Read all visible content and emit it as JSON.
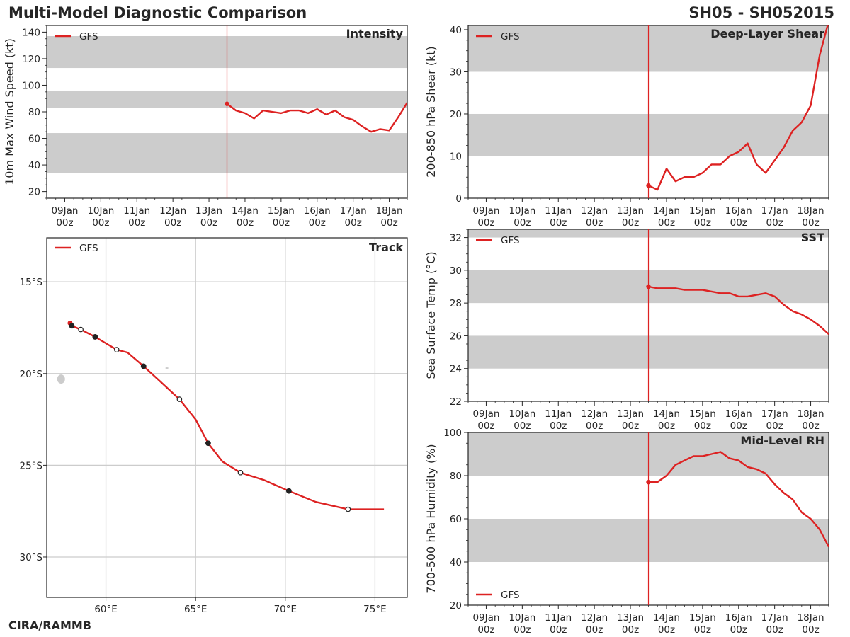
{
  "figure": {
    "title": "Multi-Model Diagnostic Comparison",
    "storm_id": "SH05 - SH052015",
    "credit": "CIRA/RAMMB"
  },
  "colors": {
    "model_line": "#dd2222",
    "band": "#cccccc",
    "grid": "#cccccc",
    "axis": "#262626",
    "marker_edge": "#222222"
  },
  "time_axis": {
    "ticks": [
      {
        "day": "09Jan",
        "hour": "00z"
      },
      {
        "day": "10Jan",
        "hour": "00z"
      },
      {
        "day": "11Jan",
        "hour": "00z"
      },
      {
        "day": "12Jan",
        "hour": "00z"
      },
      {
        "day": "13Jan",
        "hour": "00z"
      },
      {
        "day": "14Jan",
        "hour": "00z"
      },
      {
        "day": "15Jan",
        "hour": "00z"
      },
      {
        "day": "16Jan",
        "hour": "00z"
      },
      {
        "day": "17Jan",
        "hour": "00z"
      },
      {
        "day": "18Jan",
        "hour": "00z"
      }
    ],
    "range_days": [
      -0.5,
      9.5
    ],
    "init_time_day": 4.5
  },
  "chart_data": [
    {
      "id": "intensity",
      "type": "line",
      "title": "Intensity",
      "ylabel": "10m Max Wind Speed (kt)",
      "ylim": [
        15,
        145
      ],
      "yticks": [
        20,
        40,
        60,
        80,
        100,
        120,
        140
      ],
      "bands": [
        [
          34,
          64
        ],
        [
          83,
          96
        ],
        [
          113,
          137
        ]
      ],
      "legend": "GFS",
      "legend_position": "top-left",
      "series": [
        {
          "name": "GFS",
          "x": [
            4.5,
            4.75,
            5.0,
            5.25,
            5.5,
            5.75,
            6.0,
            6.25,
            6.5,
            6.75,
            7.0,
            7.25,
            7.5,
            7.75,
            8.0,
            8.25,
            8.5,
            8.75,
            9.0,
            9.25,
            9.5
          ],
          "y": [
            86,
            81,
            79,
            75,
            81,
            80,
            79,
            81,
            81,
            79,
            82,
            78,
            81,
            76,
            74,
            69,
            65,
            67,
            66,
            76,
            87
          ]
        }
      ]
    },
    {
      "id": "shear",
      "type": "line",
      "title": "Deep-Layer Shear",
      "ylabel": "200-850 hPa Shear (kt)",
      "ylim": [
        0,
        41
      ],
      "yticks": [
        0,
        10,
        20,
        30,
        40
      ],
      "bands": [
        [
          10,
          20
        ],
        [
          30,
          41
        ]
      ],
      "legend": "GFS",
      "legend_position": "top-left",
      "series": [
        {
          "name": "GFS",
          "x": [
            4.5,
            4.75,
            5.0,
            5.25,
            5.5,
            5.75,
            6.0,
            6.25,
            6.5,
            6.75,
            7.0,
            7.25,
            7.5,
            7.75,
            8.0,
            8.25,
            8.5,
            8.75,
            9.0,
            9.25,
            9.5
          ],
          "y": [
            3,
            2,
            7,
            4,
            5,
            5,
            6,
            8,
            8,
            10,
            11,
            13,
            8,
            6,
            9,
            12,
            16,
            18,
            22,
            34,
            42
          ]
        }
      ]
    },
    {
      "id": "sst",
      "type": "line",
      "title": "SST",
      "ylabel": "Sea Surface Temp (°C)",
      "ylim": [
        22,
        32.5
      ],
      "yticks": [
        22,
        24,
        26,
        28,
        30,
        32
      ],
      "bands": [
        [
          24,
          26
        ],
        [
          28,
          30
        ],
        [
          32,
          32.5
        ]
      ],
      "legend": "GFS",
      "legend_position": "top-left",
      "series": [
        {
          "name": "GFS",
          "x": [
            4.5,
            4.75,
            5.0,
            5.25,
            5.5,
            5.75,
            6.0,
            6.25,
            6.5,
            6.75,
            7.0,
            7.25,
            7.5,
            7.75,
            8.0,
            8.25,
            8.5,
            8.75,
            9.0,
            9.25,
            9.5
          ],
          "y": [
            29.0,
            28.9,
            28.9,
            28.9,
            28.8,
            28.8,
            28.8,
            28.7,
            28.6,
            28.6,
            28.4,
            28.4,
            28.5,
            28.6,
            28.4,
            27.9,
            27.5,
            27.3,
            27.0,
            26.6,
            26.1
          ]
        }
      ]
    },
    {
      "id": "rh",
      "type": "line",
      "title": "Mid-Level RH",
      "ylabel": "700-500 hPa Humidity (%)",
      "ylim": [
        20,
        100
      ],
      "yticks": [
        20,
        40,
        60,
        80,
        100
      ],
      "bands": [
        [
          40,
          60
        ],
        [
          80,
          100
        ]
      ],
      "legend": "GFS",
      "legend_position": "bottom-left",
      "series": [
        {
          "name": "GFS",
          "x": [
            4.5,
            4.75,
            5.0,
            5.25,
            5.5,
            5.75,
            6.0,
            6.25,
            6.5,
            6.75,
            7.0,
            7.25,
            7.5,
            7.75,
            8.0,
            8.25,
            8.5,
            8.75,
            9.0,
            9.25,
            9.5
          ],
          "y": [
            77,
            77,
            80,
            85,
            87,
            89,
            89,
            90,
            91,
            88,
            87,
            84,
            83,
            81,
            76,
            72,
            69,
            63,
            60,
            55,
            47
          ]
        }
      ]
    },
    {
      "id": "track",
      "type": "scatter",
      "title": "Track",
      "legend": "GFS",
      "legend_position": "top-left",
      "xlim": [
        56.7,
        76.8
      ],
      "ylim": [
        -32.2,
        -12.6
      ],
      "lon_ticks": [
        {
          "value": 60,
          "label": "60°E"
        },
        {
          "value": 65,
          "label": "65°E"
        },
        {
          "value": 70,
          "label": "70°E"
        },
        {
          "value": 75,
          "label": "75°E"
        }
      ],
      "lat_ticks": [
        {
          "value": -15,
          "label": "15°S"
        },
        {
          "value": -20,
          "label": "20°S"
        },
        {
          "value": -25,
          "label": "25°S"
        },
        {
          "value": -30,
          "label": "30°S"
        }
      ],
      "series": [
        {
          "name": "GFS",
          "lon": [
            58.0,
            58.1,
            58.6,
            59.4,
            60.6,
            61.2,
            62.1,
            63.0,
            64.1,
            65.0,
            65.7,
            66.5,
            67.5,
            68.8,
            70.2,
            71.7,
            73.5,
            75.5
          ],
          "lat": [
            -17.25,
            -17.4,
            -17.6,
            -18.0,
            -18.7,
            -18.85,
            -19.6,
            -20.4,
            -21.4,
            -22.5,
            -23.8,
            -24.8,
            -25.4,
            -25.8,
            -26.4,
            -27.0,
            -27.4,
            -27.4
          ]
        }
      ],
      "markers": [
        {
          "lon": 58.0,
          "lat": -17.25,
          "style": "start"
        },
        {
          "lon": 58.1,
          "lat": -17.4,
          "style": "filled"
        },
        {
          "lon": 58.6,
          "lat": -17.6,
          "style": "open"
        },
        {
          "lon": 59.4,
          "lat": -18.0,
          "style": "filled"
        },
        {
          "lon": 60.6,
          "lat": -18.7,
          "style": "open"
        },
        {
          "lon": 62.1,
          "lat": -19.6,
          "style": "filled"
        },
        {
          "lon": 64.1,
          "lat": -21.4,
          "style": "open"
        },
        {
          "lon": 65.7,
          "lat": -23.8,
          "style": "filled"
        },
        {
          "lon": 67.5,
          "lat": -25.4,
          "style": "open"
        },
        {
          "lon": 70.2,
          "lat": -26.4,
          "style": "filled"
        },
        {
          "lon": 73.5,
          "lat": -27.4,
          "style": "open"
        }
      ],
      "islands": [
        {
          "name": "reunion",
          "lon": 57.5,
          "lat": -20.3
        },
        {
          "name": "islet",
          "lon": 63.4,
          "lat": -19.7
        }
      ]
    }
  ]
}
